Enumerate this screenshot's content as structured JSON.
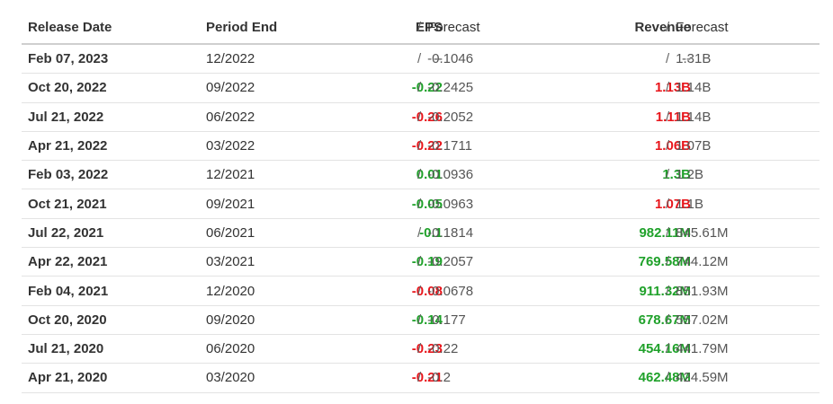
{
  "columns": {
    "release_date": "Release Date",
    "period_end": "Period End",
    "eps": "EPS",
    "eps_forecast": "Forecast",
    "revenue": "Revenue",
    "revenue_forecast": "Forecast",
    "separator": "/"
  },
  "colors": {
    "beat": "#1fa12a",
    "miss": "#e8151b"
  },
  "rows": [
    {
      "release_date": "Feb 07, 2023",
      "period_end": "12/2022",
      "eps": "--",
      "eps_status": "neutral",
      "eps_forecast": "-0.1046",
      "revenue": "--",
      "revenue_status": "neutral",
      "revenue_forecast": "1.31B"
    },
    {
      "release_date": "Oct 20, 2022",
      "period_end": "09/2022",
      "eps": "-0.22",
      "eps_status": "green",
      "eps_forecast": "-0.2425",
      "revenue": "1.13B",
      "revenue_status": "red",
      "revenue_forecast": "1.14B"
    },
    {
      "release_date": "Jul 21, 2022",
      "period_end": "06/2022",
      "eps": "-0.26",
      "eps_status": "red",
      "eps_forecast": "-0.2052",
      "revenue": "1.11B",
      "revenue_status": "red",
      "revenue_forecast": "1.14B"
    },
    {
      "release_date": "Apr 21, 2022",
      "period_end": "03/2022",
      "eps": "-0.22",
      "eps_status": "red",
      "eps_forecast": "-0.1711",
      "revenue": "1.06B",
      "revenue_status": "red",
      "revenue_forecast": "1.07B"
    },
    {
      "release_date": "Feb 03, 2022",
      "period_end": "12/2021",
      "eps": "0.01",
      "eps_status": "green",
      "eps_forecast": "-0.0936",
      "revenue": "1.3B",
      "revenue_status": "green",
      "revenue_forecast": "1.2B"
    },
    {
      "release_date": "Oct 21, 2021",
      "period_end": "09/2021",
      "eps": "-0.05",
      "eps_status": "green",
      "eps_forecast": "-0.0963",
      "revenue": "1.07B",
      "revenue_status": "red",
      "revenue_forecast": "1.1B"
    },
    {
      "release_date": "Jul 22, 2021",
      "period_end": "06/2021",
      "eps": "-0.1",
      "eps_status": "green",
      "eps_forecast": "-0.1814",
      "revenue": "982.11M",
      "revenue_status": "green",
      "revenue_forecast": "845.61M"
    },
    {
      "release_date": "Apr 22, 2021",
      "period_end": "03/2021",
      "eps": "-0.19",
      "eps_status": "green",
      "eps_forecast": "-0.2057",
      "revenue": "769.58M",
      "revenue_status": "green",
      "revenue_forecast": "744.12M"
    },
    {
      "release_date": "Feb 04, 2021",
      "period_end": "12/2020",
      "eps": "-0.08",
      "eps_status": "red",
      "eps_forecast": "-0.0678",
      "revenue": "911.32M",
      "revenue_status": "green",
      "revenue_forecast": "851.93M"
    },
    {
      "release_date": "Oct 20, 2020",
      "period_end": "09/2020",
      "eps": "-0.14",
      "eps_status": "green",
      "eps_forecast": "-0.177",
      "revenue": "678.67M",
      "revenue_status": "green",
      "revenue_forecast": "557.02M"
    },
    {
      "release_date": "Jul 21, 2020",
      "period_end": "06/2020",
      "eps": "-0.23",
      "eps_status": "red",
      "eps_forecast": "-0.22",
      "revenue": "454.16M",
      "revenue_status": "green",
      "revenue_forecast": "441.79M"
    },
    {
      "release_date": "Apr 21, 2020",
      "period_end": "03/2020",
      "eps": "-0.21",
      "eps_status": "red",
      "eps_forecast": "-0.2",
      "revenue": "462.48M",
      "revenue_status": "green",
      "revenue_forecast": "424.59M"
    }
  ]
}
